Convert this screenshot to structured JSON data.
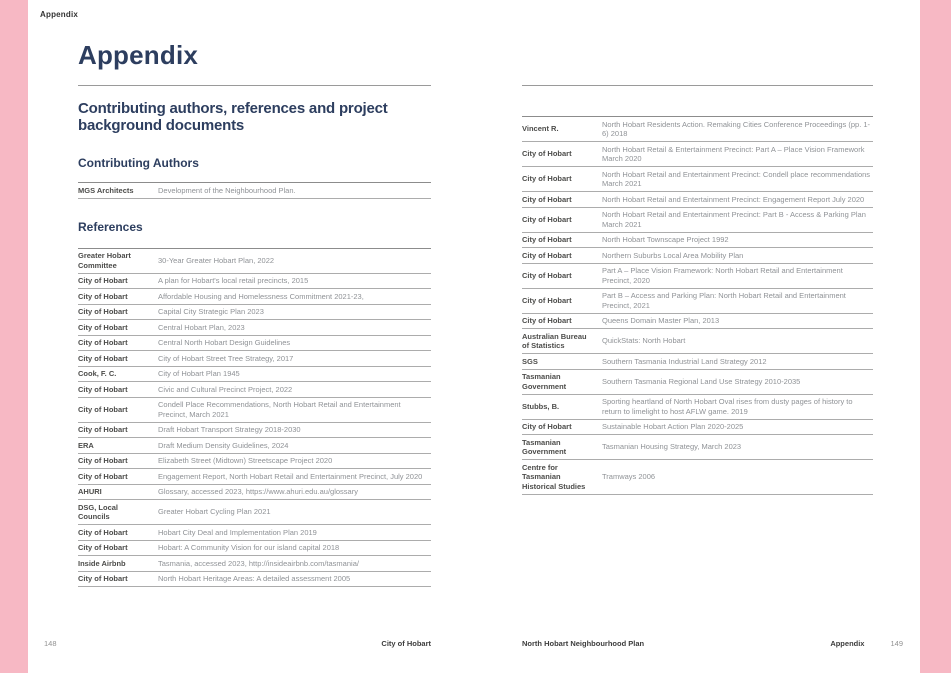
{
  "colors": {
    "accent_pink": "#f7b8c4",
    "heading_navy": "#2d3e5f",
    "author_text": "#4c4c4a",
    "body_text": "#8f9296"
  },
  "running_head": "Appendix",
  "page_left": {
    "title": "Appendix",
    "subtitle": "Contributing authors, references and project background documents",
    "contributing_authors_heading": "Contributing Authors",
    "contributing_authors": [
      {
        "author": "MGS Architects",
        "work": "Development of the Neighbourhood Plan."
      }
    ],
    "references_heading": "References",
    "references": [
      {
        "author": "Greater Hobart Committee",
        "work": "30-Year Greater Hobart Plan, 2022"
      },
      {
        "author": "City of Hobart",
        "work": "A plan for Hobart's local retail precincts, 2015"
      },
      {
        "author": "City of Hobart",
        "work": "Affordable Housing and Homelessness Commitment 2021-23,"
      },
      {
        "author": "City of Hobart",
        "work": "Capital City Strategic Plan 2023"
      },
      {
        "author": "City of Hobart",
        "work": "Central Hobart Plan, 2023"
      },
      {
        "author": "City of Hobart",
        "work": "Central North Hobart Design Guidelines"
      },
      {
        "author": "City of Hobart",
        "work": "City of Hobart Street Tree Strategy, 2017"
      },
      {
        "author": "Cook, F. C.",
        "work": "City of Hobart Plan 1945"
      },
      {
        "author": "City of Hobart",
        "work": "Civic and Cultural Precinct Project, 2022"
      },
      {
        "author": "City of Hobart",
        "work": "Condell Place Recommendations, North Hobart Retail and Entertainment Precinct, March 2021"
      },
      {
        "author": "City of Hobart",
        "work": "Draft Hobart Transport Strategy 2018-2030"
      },
      {
        "author": "ERA",
        "work": "Draft Medium Density Guidelines, 2024"
      },
      {
        "author": "City of Hobart",
        "work": "Elizabeth Street (Midtown) Streetscape Project 2020"
      },
      {
        "author": "City of Hobart",
        "work": "Engagement Report, North Hobart Retail and Entertainment Precinct, July 2020"
      },
      {
        "author": "AHURI",
        "work": "Glossary, accessed 2023, https://www.ahuri.edu.au/glossary"
      },
      {
        "author": "DSG, Local Councils",
        "work": "Greater Hobart Cycling Plan 2021"
      },
      {
        "author": "City of Hobart",
        "work": "Hobart City Deal and Implementation Plan 2019"
      },
      {
        "author": "City of Hobart",
        "work": "Hobart: A Community Vision for our island capital 2018"
      },
      {
        "author": "Inside Airbnb",
        "work": "Tasmania, accessed 2023, http://insideairbnb.com/tasmania/"
      },
      {
        "author": "City of Hobart",
        "work": "North Hobart Heritage Areas: A detailed assessment 2005"
      }
    ],
    "footer": {
      "page_number": "148",
      "brand": "City of Hobart"
    }
  },
  "page_right": {
    "references": [
      {
        "author": "Vincent R.",
        "work": "North Hobart Residents Action. Remaking Cities Conference Proceedings (pp. 1-6) 2018"
      },
      {
        "author": "City of Hobart",
        "work": "North Hobart Retail & Entertainment Precinct: Part A – Place Vision Framework March 2020"
      },
      {
        "author": "City of Hobart",
        "work": "North Hobart Retail and Entertainment Precinct: Condell place recommendations March 2021"
      },
      {
        "author": "City of Hobart",
        "work": "North Hobart Retail and Entertainment Precinct: Engagement Report July 2020"
      },
      {
        "author": "City of Hobart",
        "work": "North Hobart Retail and Entertainment Precinct: Part B - Access & Parking Plan March 2021"
      },
      {
        "author": "City of Hobart",
        "work": "North Hobart Townscape Project 1992"
      },
      {
        "author": "City of Hobart",
        "work": "Northern Suburbs Local Area Mobility Plan"
      },
      {
        "author": "City of Hobart",
        "work": "Part A – Place Vision Framework: North Hobart Retail and Entertainment Precinct, 2020"
      },
      {
        "author": "City of Hobart",
        "work": "Part B – Access and Parking Plan: North Hobart Retail and Entertainment Precinct, 2021"
      },
      {
        "author": "City of Hobart",
        "work": "Queens Domain Master Plan, 2013"
      },
      {
        "author": "Australian Bureau of Statistics",
        "work": "QuickStats: North Hobart"
      },
      {
        "author": "SGS",
        "work": "Southern Tasmania Industrial Land Strategy 2012"
      },
      {
        "author": "Tasmanian Government",
        "work": "Southern Tasmania Regional Land Use Strategy 2010-2035"
      },
      {
        "author": "Stubbs, B.",
        "work": "Sporting heartland of North Hobart Oval rises from dusty pages of history to return to limelight to host AFLW game. 2019"
      },
      {
        "author": "City of Hobart",
        "work": "Sustainable Hobart Action Plan 2020-2025"
      },
      {
        "author": "Tasmanian Government",
        "work": "Tasmanian Housing Strategy, March 2023"
      },
      {
        "author": "Centre for Tasmanian Historical Studies",
        "work": "Tramways 2006"
      }
    ],
    "footer": {
      "doc_title": "North Hobart Neighbourhood Plan",
      "section": "Appendix",
      "page_number": "149"
    }
  }
}
